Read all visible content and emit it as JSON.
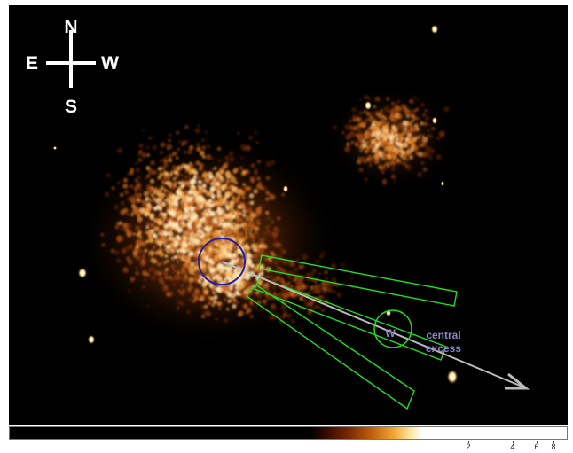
{
  "compass": {
    "north": "N",
    "south": "S",
    "east": "E",
    "west": "W"
  },
  "annotations": {
    "region_label": "W",
    "excess_line1": "central",
    "excess_line2": "excess"
  },
  "colors": {
    "background": "#000000",
    "region_box": "#22dd22",
    "circle_center": "#2222aa",
    "circle_region": "#22dd22",
    "arrow": "#bbbbbb",
    "excess_text": "#8a86c8"
  },
  "colorbar": {
    "ticks": [
      "2",
      "4",
      "6",
      "8"
    ]
  }
}
